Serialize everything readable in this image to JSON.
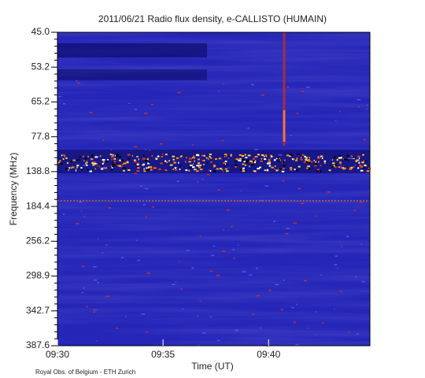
{
  "chart_data": {
    "type": "spectrogram",
    "title": "2011/06/21  Radio flux density, e-CALLISTO (HUMAIN)",
    "x_label": "Time (UT)",
    "y_label": "Frequency (MHz)",
    "footer": "Royal Obs. of Belgium - ETH Zurich",
    "xlim": [
      0,
      14.8
    ],
    "xticks": [
      {
        "value": 0,
        "label": "09:30"
      },
      {
        "value": 5,
        "label": "09:35"
      },
      {
        "value": 10,
        "label": "09:40"
      }
    ],
    "ylim": [
      45,
      387.6
    ],
    "yscale": "channel",
    "yticks": [
      {
        "value": 45,
        "label": "45.0"
      },
      53.2,
      65.2,
      77.8,
      138.8,
      184.4,
      256.2,
      298.9,
      342.7,
      387.6
    ]
  }
}
